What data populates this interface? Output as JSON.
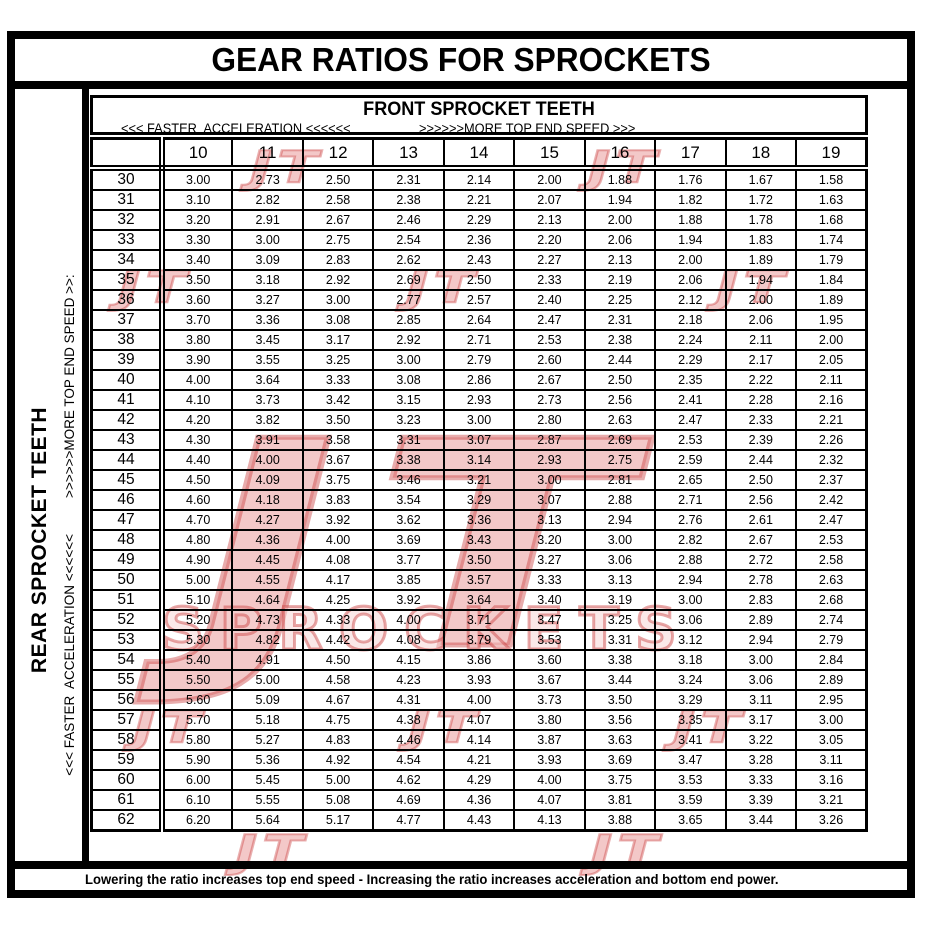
{
  "title": "GEAR RATIOS FOR SPROCKETS",
  "front_header": {
    "label": "FRONT SPROCKET TEETH",
    "acceleration_label": "<<< FASTER  ACCELERATION <<<<<<",
    "top_speed_label": ">>>>>>MORE TOP END SPEED >>>"
  },
  "left_side": {
    "rear_label": "REAR SPROCKET TEETH",
    "acceleration_label": "<<< FASTER  ACCELERATION <<<<<<",
    "top_speed_label": ">>>>>>MORE TOP END SPEED >>:"
  },
  "watermark": {
    "logo_text": "JT",
    "word": "SPROCKETS",
    "color": "#cc3333"
  },
  "footer": {
    "note": "Lowering the ratio increases top end speed - Increasing the ratio increases acceleration and bottom end power."
  },
  "table": {
    "corner_label": "",
    "front_teeth": [
      "10",
      "11",
      "12",
      "13",
      "14",
      "15",
      "16",
      "17",
      "18",
      "19"
    ],
    "rows": [
      {
        "rear": "30",
        "ratios": [
          "3.00",
          "2.73",
          "2.50",
          "2.31",
          "2.14",
          "2.00",
          "1.88",
          "1.76",
          "1.67",
          "1.58"
        ]
      },
      {
        "rear": "31",
        "ratios": [
          "3.10",
          "2.82",
          "2.58",
          "2.38",
          "2.21",
          "2.07",
          "1.94",
          "1.82",
          "1.72",
          "1.63"
        ]
      },
      {
        "rear": "32",
        "ratios": [
          "3.20",
          "2.91",
          "2.67",
          "2.46",
          "2.29",
          "2.13",
          "2.00",
          "1.88",
          "1.78",
          "1.68"
        ]
      },
      {
        "rear": "33",
        "ratios": [
          "3.30",
          "3.00",
          "2.75",
          "2.54",
          "2.36",
          "2.20",
          "2.06",
          "1.94",
          "1.83",
          "1.74"
        ]
      },
      {
        "rear": "34",
        "ratios": [
          "3.40",
          "3.09",
          "2.83",
          "2.62",
          "2.43",
          "2.27",
          "2.13",
          "2.00",
          "1.89",
          "1.79"
        ]
      },
      {
        "rear": "35",
        "ratios": [
          "3.50",
          "3.18",
          "2.92",
          "2.69",
          "2.50",
          "2.33",
          "2.19",
          "2.06",
          "1.94",
          "1.84"
        ]
      },
      {
        "rear": "36",
        "ratios": [
          "3.60",
          "3.27",
          "3.00",
          "2.77",
          "2.57",
          "2.40",
          "2.25",
          "2.12",
          "2.00",
          "1.89"
        ]
      },
      {
        "rear": "37",
        "ratios": [
          "3.70",
          "3.36",
          "3.08",
          "2.85",
          "2.64",
          "2.47",
          "2.31",
          "2.18",
          "2.06",
          "1.95"
        ]
      },
      {
        "rear": "38",
        "ratios": [
          "3.80",
          "3.45",
          "3.17",
          "2.92",
          "2.71",
          "2.53",
          "2.38",
          "2.24",
          "2.11",
          "2.00"
        ]
      },
      {
        "rear": "39",
        "ratios": [
          "3.90",
          "3.55",
          "3.25",
          "3.00",
          "2.79",
          "2.60",
          "2.44",
          "2.29",
          "2.17",
          "2.05"
        ]
      },
      {
        "rear": "40",
        "ratios": [
          "4.00",
          "3.64",
          "3.33",
          "3.08",
          "2.86",
          "2.67",
          "2.50",
          "2.35",
          "2.22",
          "2.11"
        ]
      },
      {
        "rear": "41",
        "ratios": [
          "4.10",
          "3.73",
          "3.42",
          "3.15",
          "2.93",
          "2.73",
          "2.56",
          "2.41",
          "2.28",
          "2.16"
        ]
      },
      {
        "rear": "42",
        "ratios": [
          "4.20",
          "3.82",
          "3.50",
          "3.23",
          "3.00",
          "2.80",
          "2.63",
          "2.47",
          "2.33",
          "2.21"
        ]
      },
      {
        "rear": "43",
        "ratios": [
          "4.30",
          "3.91",
          "3.58",
          "3.31",
          "3.07",
          "2.87",
          "2.69",
          "2.53",
          "2.39",
          "2.26"
        ]
      },
      {
        "rear": "44",
        "ratios": [
          "4.40",
          "4.00",
          "3.67",
          "3.38",
          "3.14",
          "2.93",
          "2.75",
          "2.59",
          "2.44",
          "2.32"
        ]
      },
      {
        "rear": "45",
        "ratios": [
          "4.50",
          "4.09",
          "3.75",
          "3.46",
          "3.21",
          "3.00",
          "2.81",
          "2.65",
          "2.50",
          "2.37"
        ]
      },
      {
        "rear": "46",
        "ratios": [
          "4.60",
          "4.18",
          "3.83",
          "3.54",
          "3.29",
          "3.07",
          "2.88",
          "2.71",
          "2.56",
          "2.42"
        ]
      },
      {
        "rear": "47",
        "ratios": [
          "4.70",
          "4.27",
          "3.92",
          "3.62",
          "3.36",
          "3.13",
          "2.94",
          "2.76",
          "2.61",
          "2.47"
        ]
      },
      {
        "rear": "48",
        "ratios": [
          "4.80",
          "4.36",
          "4.00",
          "3.69",
          "3.43",
          "3.20",
          "3.00",
          "2.82",
          "2.67",
          "2.53"
        ]
      },
      {
        "rear": "49",
        "ratios": [
          "4.90",
          "4.45",
          "4.08",
          "3.77",
          "3.50",
          "3.27",
          "3.06",
          "2.88",
          "2.72",
          "2.58"
        ]
      },
      {
        "rear": "50",
        "ratios": [
          "5.00",
          "4.55",
          "4.17",
          "3.85",
          "3.57",
          "3.33",
          "3.13",
          "2.94",
          "2.78",
          "2.63"
        ]
      },
      {
        "rear": "51",
        "ratios": [
          "5.10",
          "4.64",
          "4.25",
          "3.92",
          "3.64",
          "3.40",
          "3.19",
          "3.00",
          "2.83",
          "2.68"
        ]
      },
      {
        "rear": "52",
        "ratios": [
          "5.20",
          "4.73",
          "4.33",
          "4.00",
          "3.71",
          "3.47",
          "3.25",
          "3.06",
          "2.89",
          "2.74"
        ]
      },
      {
        "rear": "53",
        "ratios": [
          "5.30",
          "4.82",
          "4.42",
          "4.08",
          "3.79",
          "3.53",
          "3.31",
          "3.12",
          "2.94",
          "2.79"
        ]
      },
      {
        "rear": "54",
        "ratios": [
          "5.40",
          "4.91",
          "4.50",
          "4.15",
          "3.86",
          "3.60",
          "3.38",
          "3.18",
          "3.00",
          "2.84"
        ]
      },
      {
        "rear": "55",
        "ratios": [
          "5.50",
          "5.00",
          "4.58",
          "4.23",
          "3.93",
          "3.67",
          "3.44",
          "3.24",
          "3.06",
          "2.89"
        ]
      },
      {
        "rear": "56",
        "ratios": [
          "5.60",
          "5.09",
          "4.67",
          "4.31",
          "4.00",
          "3.73",
          "3.50",
          "3.29",
          "3.11",
          "2.95"
        ]
      },
      {
        "rear": "57",
        "ratios": [
          "5.70",
          "5.18",
          "4.75",
          "4.38",
          "4.07",
          "3.80",
          "3.56",
          "3.35",
          "3.17",
          "3.00"
        ]
      },
      {
        "rear": "58",
        "ratios": [
          "5.80",
          "5.27",
          "4.83",
          "4.46",
          "4.14",
          "3.87",
          "3.63",
          "3.41",
          "3.22",
          "3.05"
        ]
      },
      {
        "rear": "59",
        "ratios": [
          "5.90",
          "5.36",
          "4.92",
          "4.54",
          "4.21",
          "3.93",
          "3.69",
          "3.47",
          "3.28",
          "3.11"
        ]
      },
      {
        "rear": "60",
        "ratios": [
          "6.00",
          "5.45",
          "5.00",
          "4.62",
          "4.29",
          "4.00",
          "3.75",
          "3.53",
          "3.33",
          "3.16"
        ]
      },
      {
        "rear": "61",
        "ratios": [
          "6.10",
          "5.55",
          "5.08",
          "4.69",
          "4.36",
          "4.07",
          "3.81",
          "3.59",
          "3.39",
          "3.21"
        ]
      },
      {
        "rear": "62",
        "ratios": [
          "6.20",
          "5.64",
          "5.17",
          "4.77",
          "4.43",
          "4.13",
          "3.88",
          "3.65",
          "3.44",
          "3.26"
        ]
      }
    ]
  }
}
